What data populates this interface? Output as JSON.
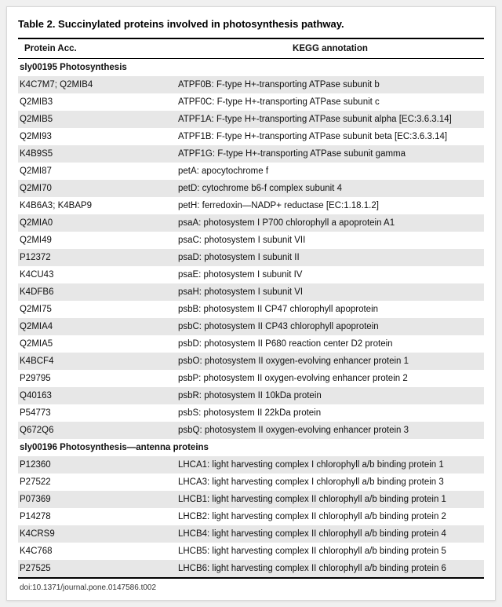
{
  "title": "Table 2.  Succinylated proteins involved in photosynthesis pathway.",
  "columns": {
    "acc": "Protein Acc.",
    "kegg": "KEGG annotation"
  },
  "sections": [
    {
      "header": "sly00195 Photosynthesis",
      "rows": [
        {
          "acc": "K4C7M7; Q2MIB4",
          "kegg": "ATPF0B: F-type H+-transporting ATPase subunit b"
        },
        {
          "acc": "Q2MIB3",
          "kegg": "ATPF0C: F-type H+-transporting ATPase subunit c"
        },
        {
          "acc": "Q2MIB5",
          "kegg": "ATPF1A: F-type H+-transporting ATPase subunit alpha [EC:3.6.3.14]"
        },
        {
          "acc": "Q2MI93",
          "kegg": "ATPF1B: F-type H+-transporting ATPase subunit beta [EC:3.6.3.14]"
        },
        {
          "acc": "K4B9S5",
          "kegg": "ATPF1G: F-type H+-transporting ATPase subunit gamma"
        },
        {
          "acc": "Q2MI87",
          "kegg": "petA: apocytochrome f"
        },
        {
          "acc": "Q2MI70",
          "kegg": "petD: cytochrome b6-f complex subunit 4"
        },
        {
          "acc": "K4B6A3; K4BAP9",
          "kegg": "petH: ferredoxin—NADP+ reductase [EC:1.18.1.2]"
        },
        {
          "acc": "Q2MIA0",
          "kegg": "psaA: photosystem I P700 chlorophyll a apoprotein A1"
        },
        {
          "acc": "Q2MI49",
          "kegg": "psaC: photosystem I subunit VII"
        },
        {
          "acc": "P12372",
          "kegg": "psaD: photosystem I subunit II"
        },
        {
          "acc": "K4CU43",
          "kegg": "psaE: photosystem I subunit IV"
        },
        {
          "acc": "K4DFB6",
          "kegg": "psaH: photosystem I subunit VI"
        },
        {
          "acc": "Q2MI75",
          "kegg": "psbB: photosystem II CP47 chlorophyll apoprotein"
        },
        {
          "acc": "Q2MIA4",
          "kegg": "psbC: photosystem II CP43 chlorophyll apoprotein"
        },
        {
          "acc": "Q2MIA5",
          "kegg": "psbD: photosystem II P680 reaction center D2 protein"
        },
        {
          "acc": "K4BCF4",
          "kegg": "psbO: photosystem II oxygen-evolving enhancer protein 1"
        },
        {
          "acc": "P29795",
          "kegg": "psbP: photosystem II oxygen-evolving enhancer protein 2"
        },
        {
          "acc": "Q40163",
          "kegg": "psbR: photosystem II 10kDa protein"
        },
        {
          "acc": "P54773",
          "kegg": "psbS: photosystem II 22kDa protein"
        },
        {
          "acc": "Q672Q6",
          "kegg": "psbQ: photosystem II oxygen-evolving enhancer protein 3"
        }
      ]
    },
    {
      "header": "sly00196 Photosynthesis—antenna proteins",
      "rows": [
        {
          "acc": "P12360",
          "kegg": "LHCA1: light harvesting complex I chlorophyll a/b binding protein 1"
        },
        {
          "acc": "P27522",
          "kegg": "LHCA3: light harvesting complex I chlorophyll a/b binding protein 3"
        },
        {
          "acc": "P07369",
          "kegg": "LHCB1: light harvesting complex II chlorophyll a/b binding protein 1"
        },
        {
          "acc": "P14278",
          "kegg": "LHCB2: light harvesting complex II chlorophyll a/b binding protein 2"
        },
        {
          "acc": "K4CRS9",
          "kegg": "LHCB4: light harvesting complex II chlorophyll a/b binding protein 4"
        },
        {
          "acc": "K4C768",
          "kegg": "LHCB5: light harvesting complex II chlorophyll a/b binding protein 5"
        },
        {
          "acc": "P27525",
          "kegg": "LHCB6: light harvesting complex II chlorophyll a/b binding protein 6"
        }
      ]
    }
  ],
  "doi": "doi:10.1371/journal.pone.0147586.t002",
  "style": {
    "type": "table",
    "background_color": "#ffffff",
    "stripe_color": "#e7e7e7",
    "border_color": "#000000",
    "text_color": "#111111",
    "title_fontsize": 13,
    "body_fontsize": 11.5,
    "doi_fontsize": 10,
    "col_widths_pct": [
      34,
      66
    ]
  }
}
